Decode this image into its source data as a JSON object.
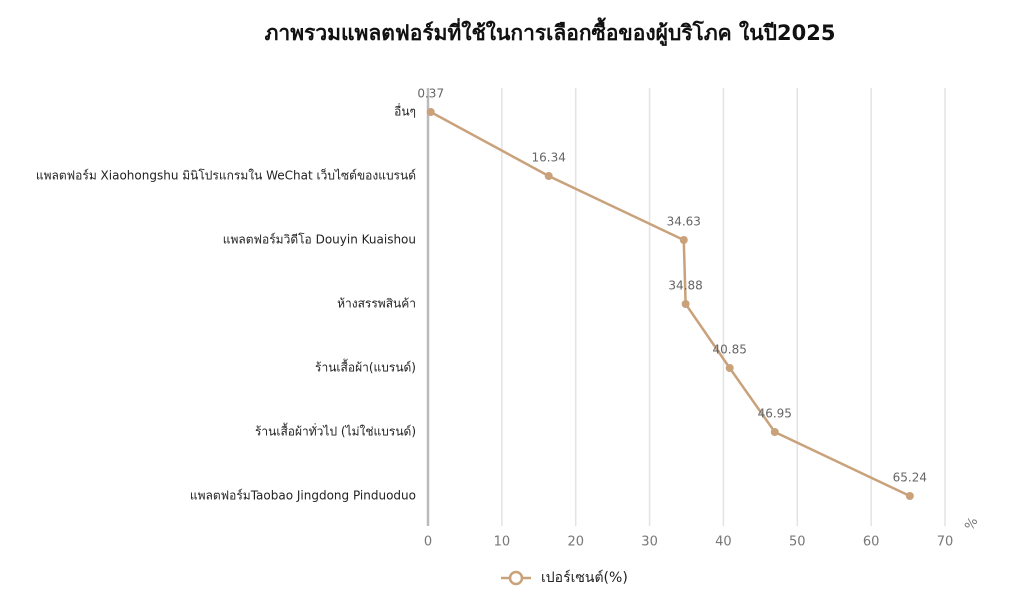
{
  "chart_data": {
    "type": "line",
    "orientation": "horizontal",
    "title": "ภาพรวมแพลตฟอร์มที่ใช้ในการเลือกซื้อของผู้บริโภค ในปี2025",
    "categories": [
      "อื่นๆ",
      "แพลตฟอร์ม Xiaohongshu มินิโปรแกรมใน WeChat เว็บไซต์ของแบรนด์",
      "แพลตฟอร์มวิดีโอ Douyin  Kuaishou",
      "ห้างสรรพสินค้า",
      "ร้านเสื้อผ้า(แบรนด์)",
      "ร้านเสื้อผ้าทั่วไป (ไม่ใช่แบรนด์)",
      "แพลตฟอร์มTaobao Jingdong Pinduoduo"
    ],
    "series": [
      {
        "name": "เปอร์เซนต์(%)",
        "color": "#c9a27c",
        "values": [
          0.37,
          16.34,
          34.63,
          34.88,
          40.85,
          46.95,
          65.24
        ]
      }
    ],
    "xlim": [
      0,
      70
    ],
    "xticks": [
      0,
      10,
      20,
      30,
      40,
      50,
      60,
      70
    ],
    "x_unit": "%",
    "grid": true,
    "legend": "bottom"
  }
}
